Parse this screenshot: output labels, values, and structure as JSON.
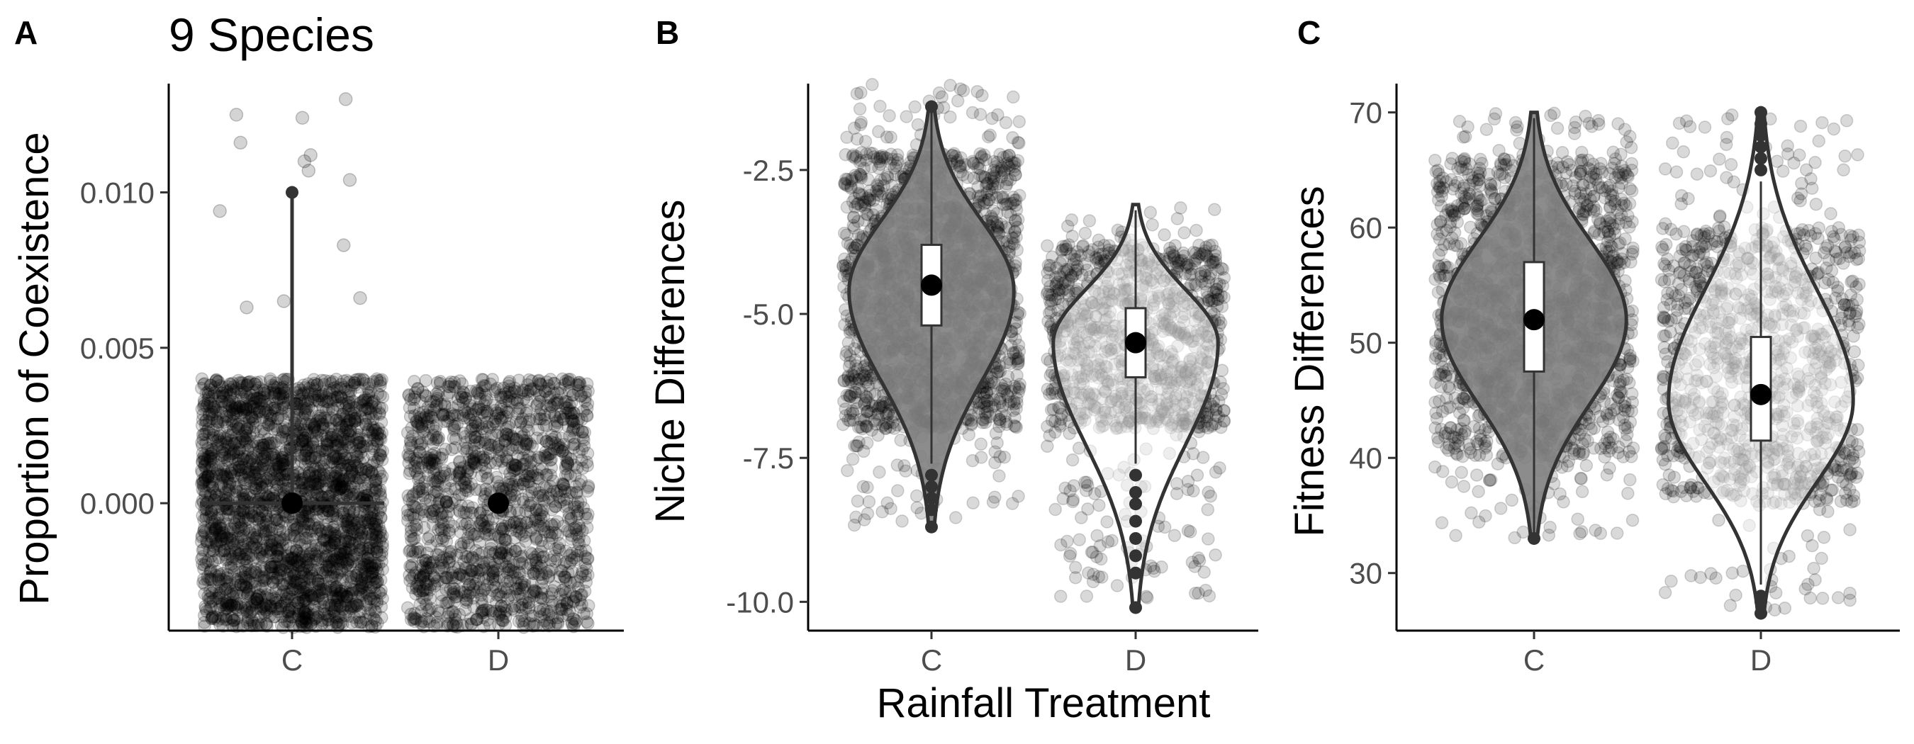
{
  "figure": {
    "panel_labels": [
      "A",
      "B",
      "C"
    ],
    "title": "9 Species",
    "shared_xlabel": "Rainfall Treatment"
  },
  "chart_data": [
    {
      "type": "scatter",
      "panel": "A",
      "title": "9 Species",
      "xlabel": "",
      "ylabel": "Proportion of Coexistence",
      "categories": [
        "C",
        "D"
      ],
      "ylim": [
        -0.0041,
        0.0135
      ],
      "yticks": [
        0.0,
        0.005,
        0.01
      ],
      "ytick_labels": [
        "0.000",
        "0.005",
        "0.010"
      ],
      "jitter_band": [
        -0.004,
        0.004
      ],
      "point_color": "#000000",
      "outliers_C": [
        {
          "dx": -0.35,
          "y": 0.0094
        },
        {
          "dx": -0.27,
          "y": 0.0125
        },
        {
          "dx": -0.25,
          "y": 0.0116
        },
        {
          "dx": -0.22,
          "y": 0.0063
        },
        {
          "dx": -0.04,
          "y": 0.0065
        },
        {
          "dx": 0.05,
          "y": 0.0124
        },
        {
          "dx": 0.09,
          "y": 0.0112
        },
        {
          "dx": 0.08,
          "y": 0.0107
        },
        {
          "dx": 0.06,
          "y": 0.011
        },
        {
          "dx": 0.26,
          "y": 0.013
        },
        {
          "dx": 0.28,
          "y": 0.0104
        },
        {
          "dx": 0.25,
          "y": 0.0083
        },
        {
          "dx": 0.33,
          "y": 0.0066
        }
      ],
      "summary": [
        {
          "category": "C",
          "median": 0.0,
          "upper": 0.01,
          "lower": 0.0
        },
        {
          "category": "D",
          "median": 0.0
        }
      ],
      "violin_C_halfwidth": 0.0
    },
    {
      "type": "violin",
      "panel": "B",
      "xlabel": "Rainfall Treatment",
      "ylabel": "Niche Differences",
      "categories": [
        "C",
        "D"
      ],
      "ylim": [
        -10.5,
        -1.0
      ],
      "yticks": [
        -10.0,
        -7.5,
        -5.0,
        -2.5
      ],
      "ytick_labels": [
        "-10.0",
        "-7.5",
        "-5.0",
        "-2.5"
      ],
      "groups": [
        {
          "name": "C",
          "fill": "#808080",
          "points_range": [
            -8.7,
            -1.0
          ],
          "core_range": [
            -7.0,
            -2.2
          ],
          "n_points": 1600,
          "violin_range": [
            -8.7,
            -1.4
          ],
          "mode": -4.6,
          "q1": -5.2,
          "median": -4.5,
          "q3": -3.8,
          "whisker_low": -7.6,
          "whisker_high": -1.5,
          "outliers": [
            -7.8,
            -8.0,
            -8.2,
            -8.4,
            -8.7,
            -1.4
          ]
        },
        {
          "name": "D",
          "fill": "#ffffff",
          "points_range": [
            -10.1,
            -3.1
          ],
          "core_range": [
            -7.0,
            -3.8
          ],
          "n_points": 1100,
          "violin_range": [
            -10.1,
            -3.1
          ],
          "mode": -5.5,
          "q1": -6.1,
          "median": -5.5,
          "q3": -4.9,
          "whisker_low": -7.6,
          "whisker_high": -3.2,
          "outliers": [
            -7.8,
            -8.1,
            -8.3,
            -8.6,
            -8.9,
            -9.2,
            -9.5,
            -10.1
          ]
        }
      ]
    },
    {
      "type": "violin",
      "panel": "C",
      "xlabel": "",
      "ylabel": "Fitness Differences",
      "categories": [
        "C",
        "D"
      ],
      "ylim": [
        25.0,
        72.5
      ],
      "yticks": [
        30,
        40,
        50,
        60,
        70
      ],
      "ytick_labels": [
        "30",
        "40",
        "50",
        "60",
        "70"
      ],
      "groups": [
        {
          "name": "C",
          "fill": "#808080",
          "points_range": [
            33,
            70
          ],
          "core_range": [
            40,
            66
          ],
          "n_points": 1500,
          "violin_range": [
            33,
            70
          ],
          "mode": 52,
          "q1": 47.5,
          "median": 52,
          "q3": 57,
          "whisker_low": 33.5,
          "whisker_high": 69.5,
          "outliers": [
            33
          ]
        },
        {
          "name": "D",
          "fill": "#ffffff",
          "points_range": [
            26.5,
            70
          ],
          "core_range": [
            36,
            60
          ],
          "n_points": 1100,
          "violin_range": [
            26.5,
            70
          ],
          "mode": 45,
          "q1": 41.5,
          "median": 45.5,
          "q3": 50.5,
          "whisker_low": 29,
          "whisker_high": 64,
          "outliers": [
            26.5,
            27.5,
            28,
            65,
            66,
            67,
            68,
            69,
            70
          ]
        }
      ]
    }
  ]
}
